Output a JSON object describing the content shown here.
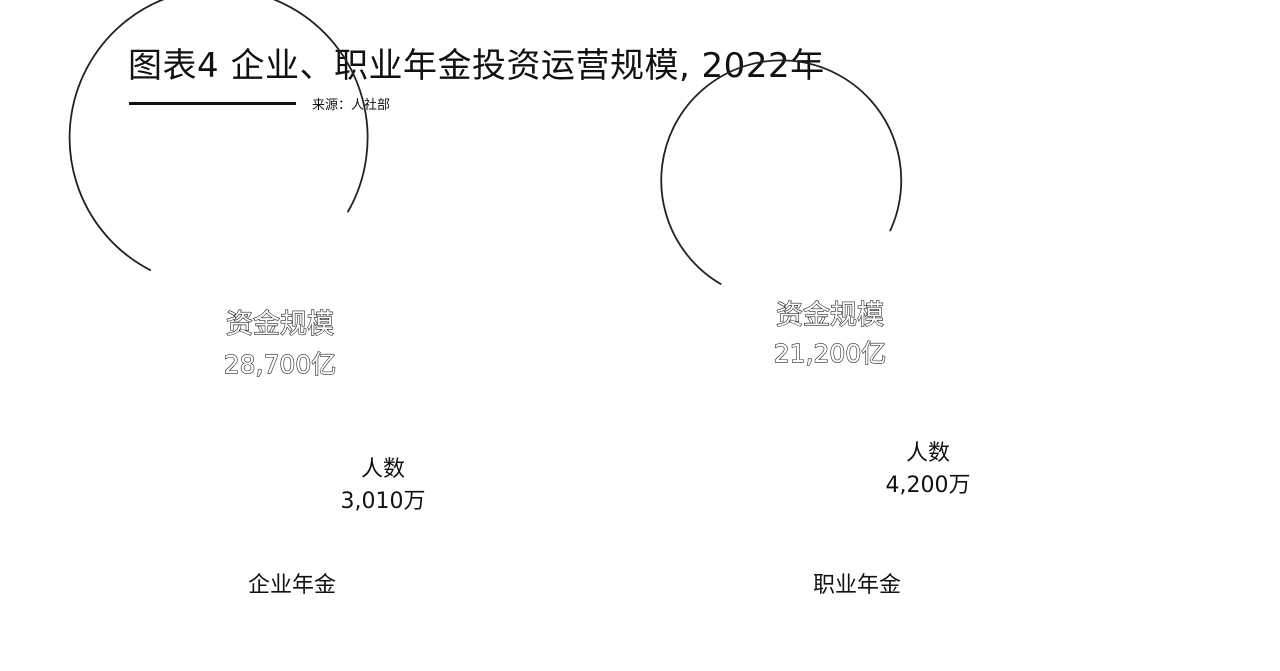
{
  "title": "图表4 企业、职业年金投资运营规模, 2022年",
  "source": "来源：人社部",
  "chart_data": {
    "type": "pie",
    "title": "图表4 企业、职业年金投资运营规模, 2022年",
    "categories": [
      "企业年金",
      "职业年金"
    ],
    "series": [
      {
        "name": "资金规模",
        "values": [
          28700,
          21200
        ],
        "value_labels": [
          "28,700亿",
          "21,200亿"
        ]
      },
      {
        "name": "人数",
        "values": [
          3010,
          4200
        ],
        "value_labels": [
          "3,010万",
          "4,200万"
        ]
      }
    ],
    "colors": {
      "ring": "#222222",
      "text": "#111111",
      "background": "#ffffff"
    }
  }
}
